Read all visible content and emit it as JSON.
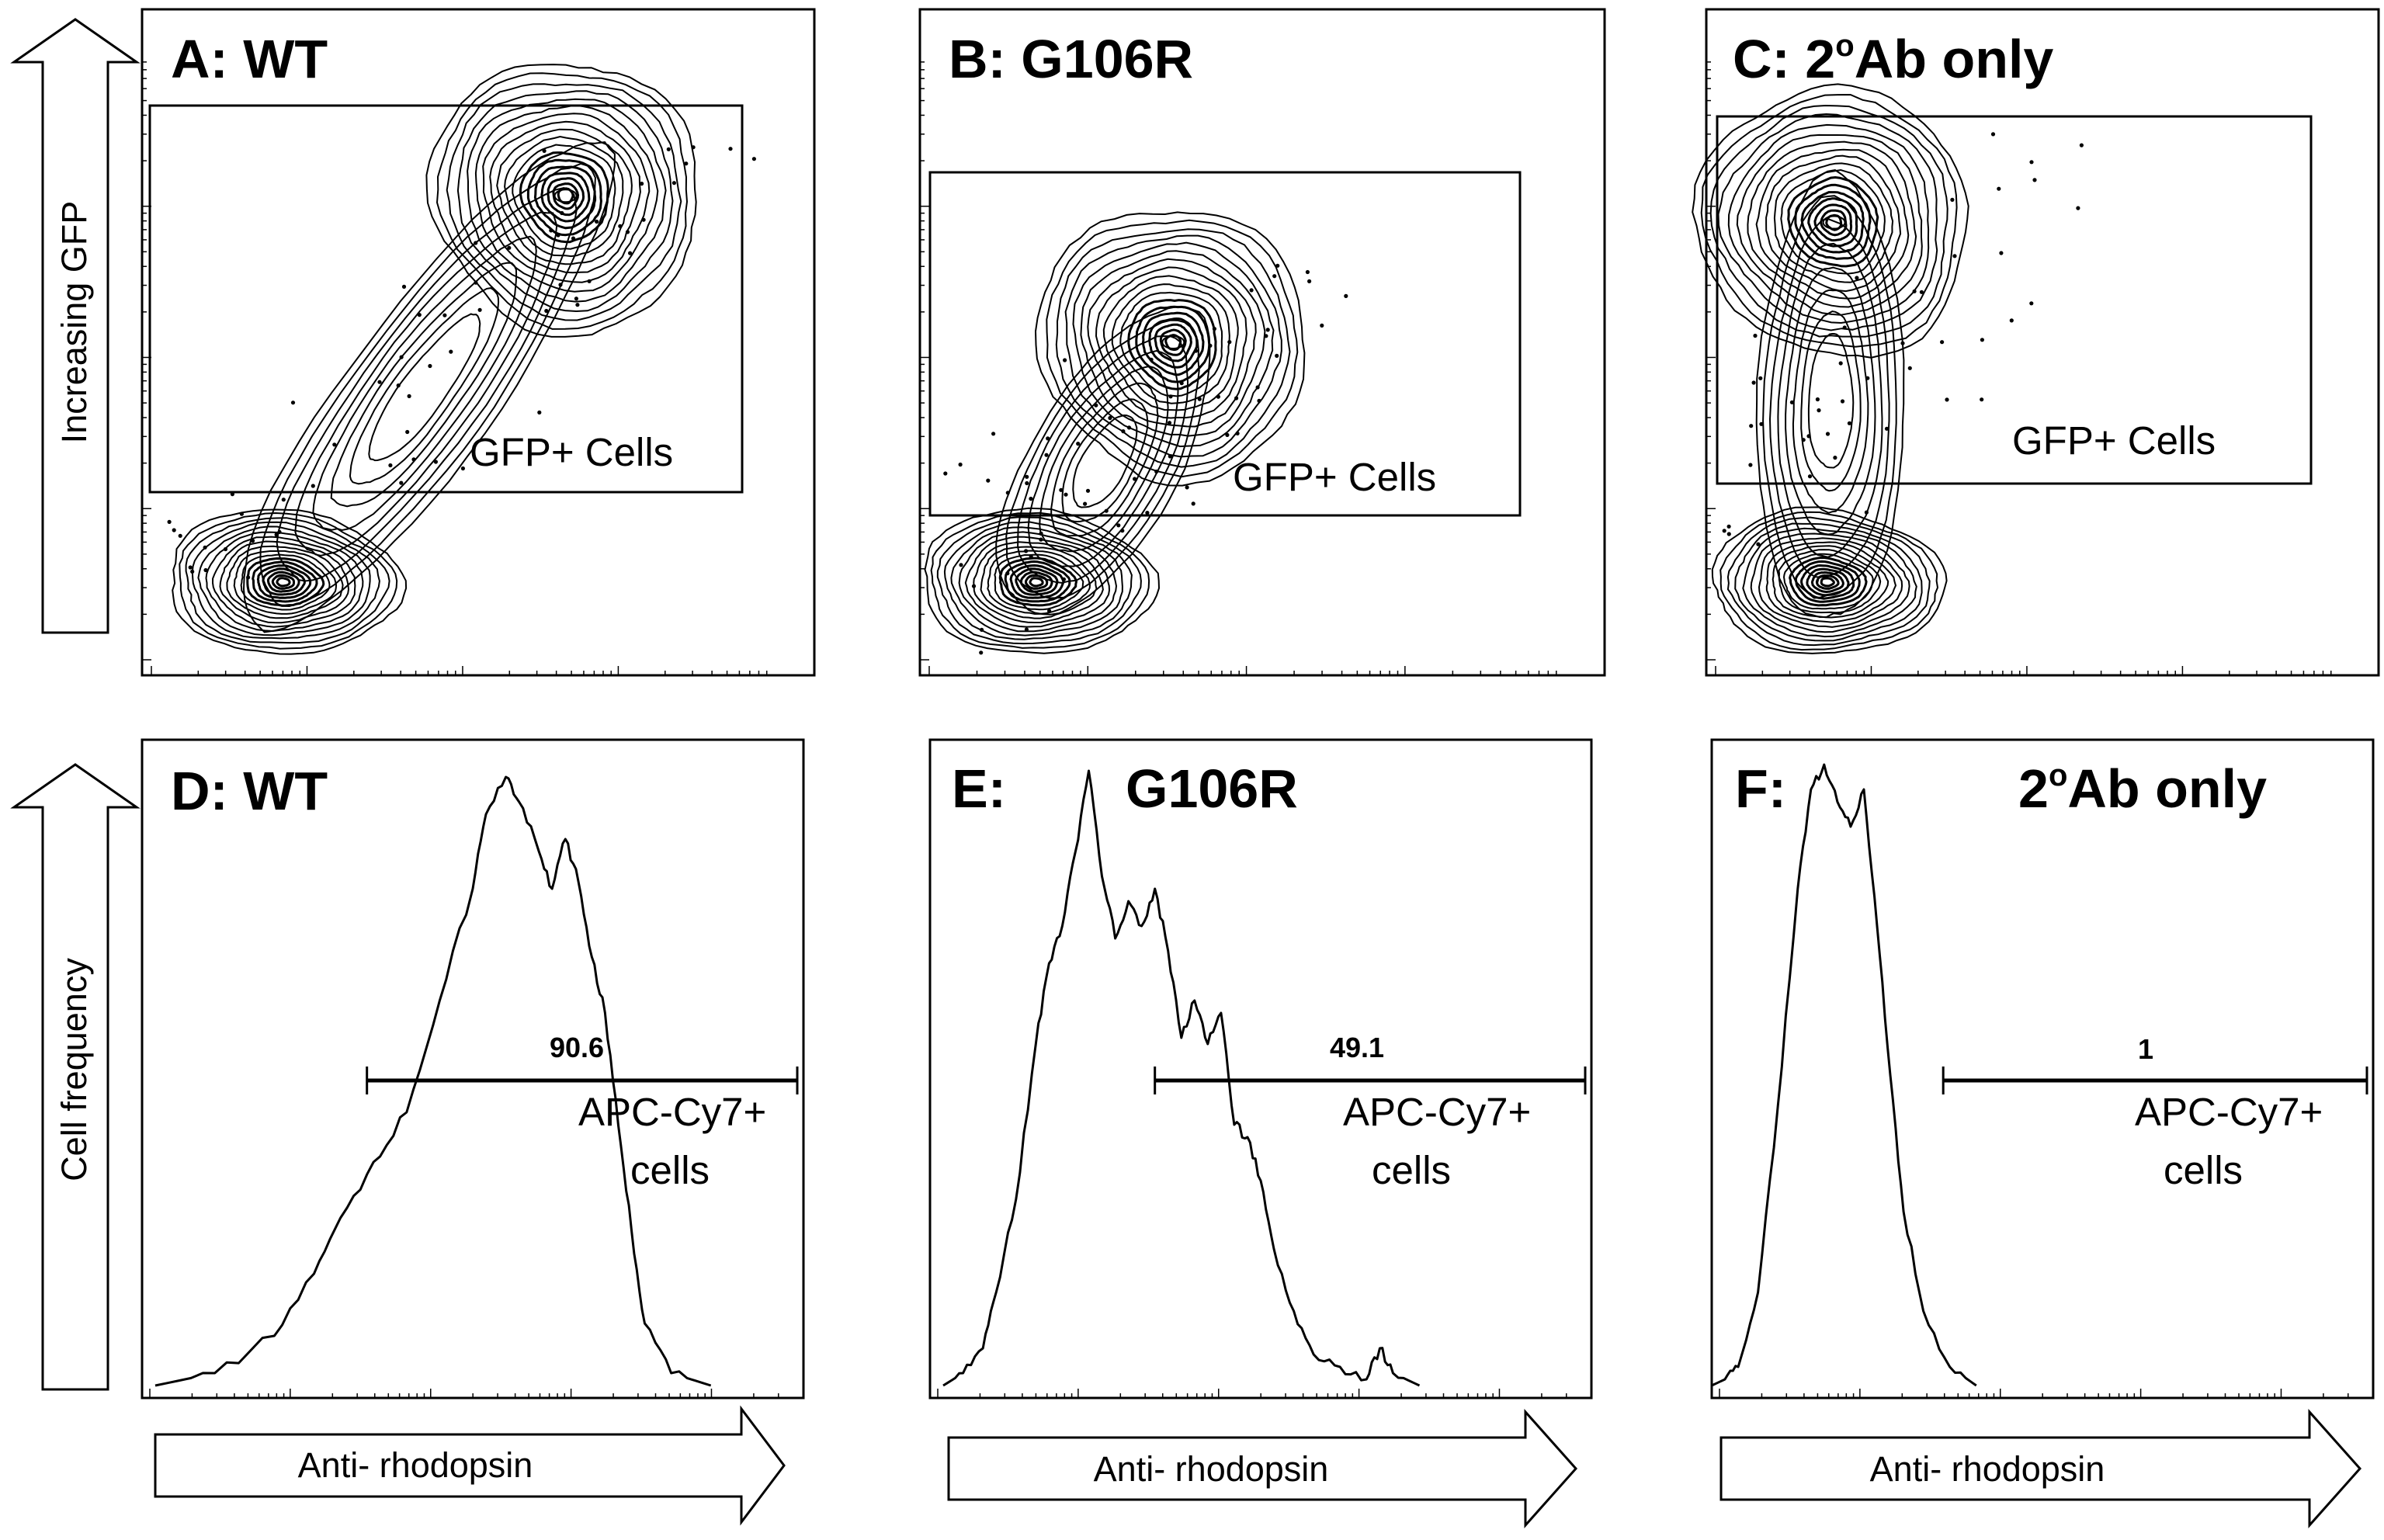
{
  "figure": {
    "y_arrows": [
      "Increasing GFP",
      "Cell frequency"
    ],
    "x_arrow_label": "Anti- rhodopsin"
  },
  "panels": [
    {
      "id": "A",
      "title": "A: WT",
      "type": "contour",
      "gate_label": "GFP+ Cells"
    },
    {
      "id": "B",
      "title": "B: G106R",
      "type": "contour",
      "gate_label": "GFP+ Cells"
    },
    {
      "id": "C",
      "title_prefix": "C: 2",
      "title_sup": "o",
      "title_suffix": "Ab only",
      "type": "contour",
      "gate_label": "GFP+ Cells"
    },
    {
      "id": "D",
      "title": "D: WT",
      "type": "histogram",
      "gate_value": "90.6",
      "gate_label_line1": "APC-Cy7+",
      "gate_label_line2": "cells"
    },
    {
      "id": "E",
      "title_prefix": "E:",
      "title_main": "G106R",
      "type": "histogram",
      "gate_value": "49.1",
      "gate_label_line1": "APC-Cy7+",
      "gate_label_line2": "cells"
    },
    {
      "id": "F",
      "title_prefix": "F:",
      "title_main_prefix": "2",
      "title_sup": "o",
      "title_main_suffix": "Ab only",
      "type": "histogram",
      "gate_value": "1",
      "gate_label_line1": "APC-Cy7+",
      "gate_label_line2": "cells"
    }
  ],
  "chart_data": [
    {
      "type": "scatter",
      "panel": "A",
      "title": "A: WT",
      "ylabel": "Increasing GFP",
      "xlabel": "",
      "x_scale": "log",
      "y_scale": "log",
      "populations": [
        {
          "name": "",
          "peak_x": 0.21,
          "peak_y": 0.14
        },
        {
          "name": "",
          "peak_x": 0.63,
          "peak_y": 0.72
        }
      ],
      "gate": {
        "label": "GFP+ Cells",
        "x": [
          0.02,
          0.98
        ],
        "y": [
          0.27,
          0.86
        ]
      }
    },
    {
      "type": "scatter",
      "panel": "B",
      "title": "B: G106R",
      "ylabel": "",
      "xlabel": "",
      "x_scale": "log",
      "y_scale": "log",
      "populations": [
        {
          "name": "",
          "peak_x": 0.17,
          "peak_y": 0.14
        },
        {
          "name": "",
          "peak_x": 0.37,
          "peak_y": 0.5
        }
      ],
      "gate": {
        "label": "GFP+ Cells",
        "x": [
          0.02,
          0.97
        ],
        "y": [
          0.24,
          0.76
        ]
      }
    },
    {
      "type": "scatter",
      "panel": "C",
      "title": "C: 2oAb only",
      "ylabel": "",
      "xlabel": "",
      "x_scale": "log",
      "y_scale": "log",
      "populations": [
        {
          "name": "",
          "peak_x": 0.18,
          "peak_y": 0.14
        },
        {
          "name": "",
          "peak_x": 0.19,
          "peak_y": 0.68
        }
      ],
      "gate": {
        "label": "GFP+ Cells",
        "x": [
          0.02,
          0.96
        ],
        "y": [
          0.29,
          0.84
        ]
      }
    },
    {
      "type": "area",
      "panel": "D",
      "title": "D: WT",
      "xlabel": "Anti- rhodopsin",
      "ylabel": "Cell frequency",
      "x_scale": "log",
      "x": [
        0.02,
        0.11,
        0.2,
        0.26,
        0.3,
        0.35,
        0.4,
        0.45,
        0.5,
        0.52,
        0.55,
        0.57,
        0.6,
        0.62,
        0.64,
        0.66,
        0.68,
        0.7,
        0.72,
        0.74,
        0.76,
        0.8,
        0.86
      ],
      "y": [
        0.0,
        0.02,
        0.08,
        0.18,
        0.27,
        0.36,
        0.44,
        0.62,
        0.8,
        0.92,
        0.98,
        0.94,
        0.86,
        0.8,
        0.88,
        0.81,
        0.69,
        0.6,
        0.42,
        0.25,
        0.1,
        0.02,
        0.0
      ],
      "gate": {
        "value": 90.6,
        "x": [
          0.34,
          1.0
        ],
        "label": "APC-Cy7+ cells"
      }
    },
    {
      "type": "area",
      "panel": "E",
      "title": "E: G106R",
      "xlabel": "Anti- rhodopsin",
      "ylabel": "",
      "x_scale": "log",
      "x": [
        0.02,
        0.05,
        0.08,
        0.1,
        0.13,
        0.16,
        0.18,
        0.2,
        0.22,
        0.24,
        0.26,
        0.28,
        0.3,
        0.32,
        0.34,
        0.36,
        0.38,
        0.4,
        0.42,
        0.44,
        0.46,
        0.48,
        0.5,
        0.52,
        0.55,
        0.58,
        0.62,
        0.66,
        0.68,
        0.7,
        0.74
      ],
      "y": [
        0.0,
        0.02,
        0.06,
        0.15,
        0.3,
        0.55,
        0.68,
        0.74,
        0.86,
        0.99,
        0.82,
        0.72,
        0.78,
        0.74,
        0.8,
        0.7,
        0.56,
        0.62,
        0.55,
        0.6,
        0.42,
        0.4,
        0.33,
        0.22,
        0.12,
        0.05,
        0.03,
        0.01,
        0.06,
        0.02,
        0.0
      ],
      "gate": {
        "value": 49.1,
        "x": [
          0.34,
          1.0
        ],
        "label": "APC-Cy7+ cells"
      }
    },
    {
      "type": "area",
      "panel": "F",
      "title": "F: 2oAb only",
      "xlabel": "Anti- rhodopsin",
      "ylabel": "",
      "x_scale": "log",
      "x": [
        0.0,
        0.02,
        0.04,
        0.07,
        0.1,
        0.13,
        0.15,
        0.17,
        0.19,
        0.21,
        0.23,
        0.25,
        0.27,
        0.29,
        0.32,
        0.36,
        0.4
      ],
      "y": [
        0.0,
        0.01,
        0.03,
        0.15,
        0.45,
        0.8,
        0.96,
        1.0,
        0.94,
        0.9,
        0.96,
        0.74,
        0.5,
        0.28,
        0.12,
        0.03,
        0.0
      ],
      "gate": {
        "value": 1,
        "x": [
          0.35,
          1.0
        ],
        "label": "APC-Cy7+ cells"
      }
    }
  ]
}
